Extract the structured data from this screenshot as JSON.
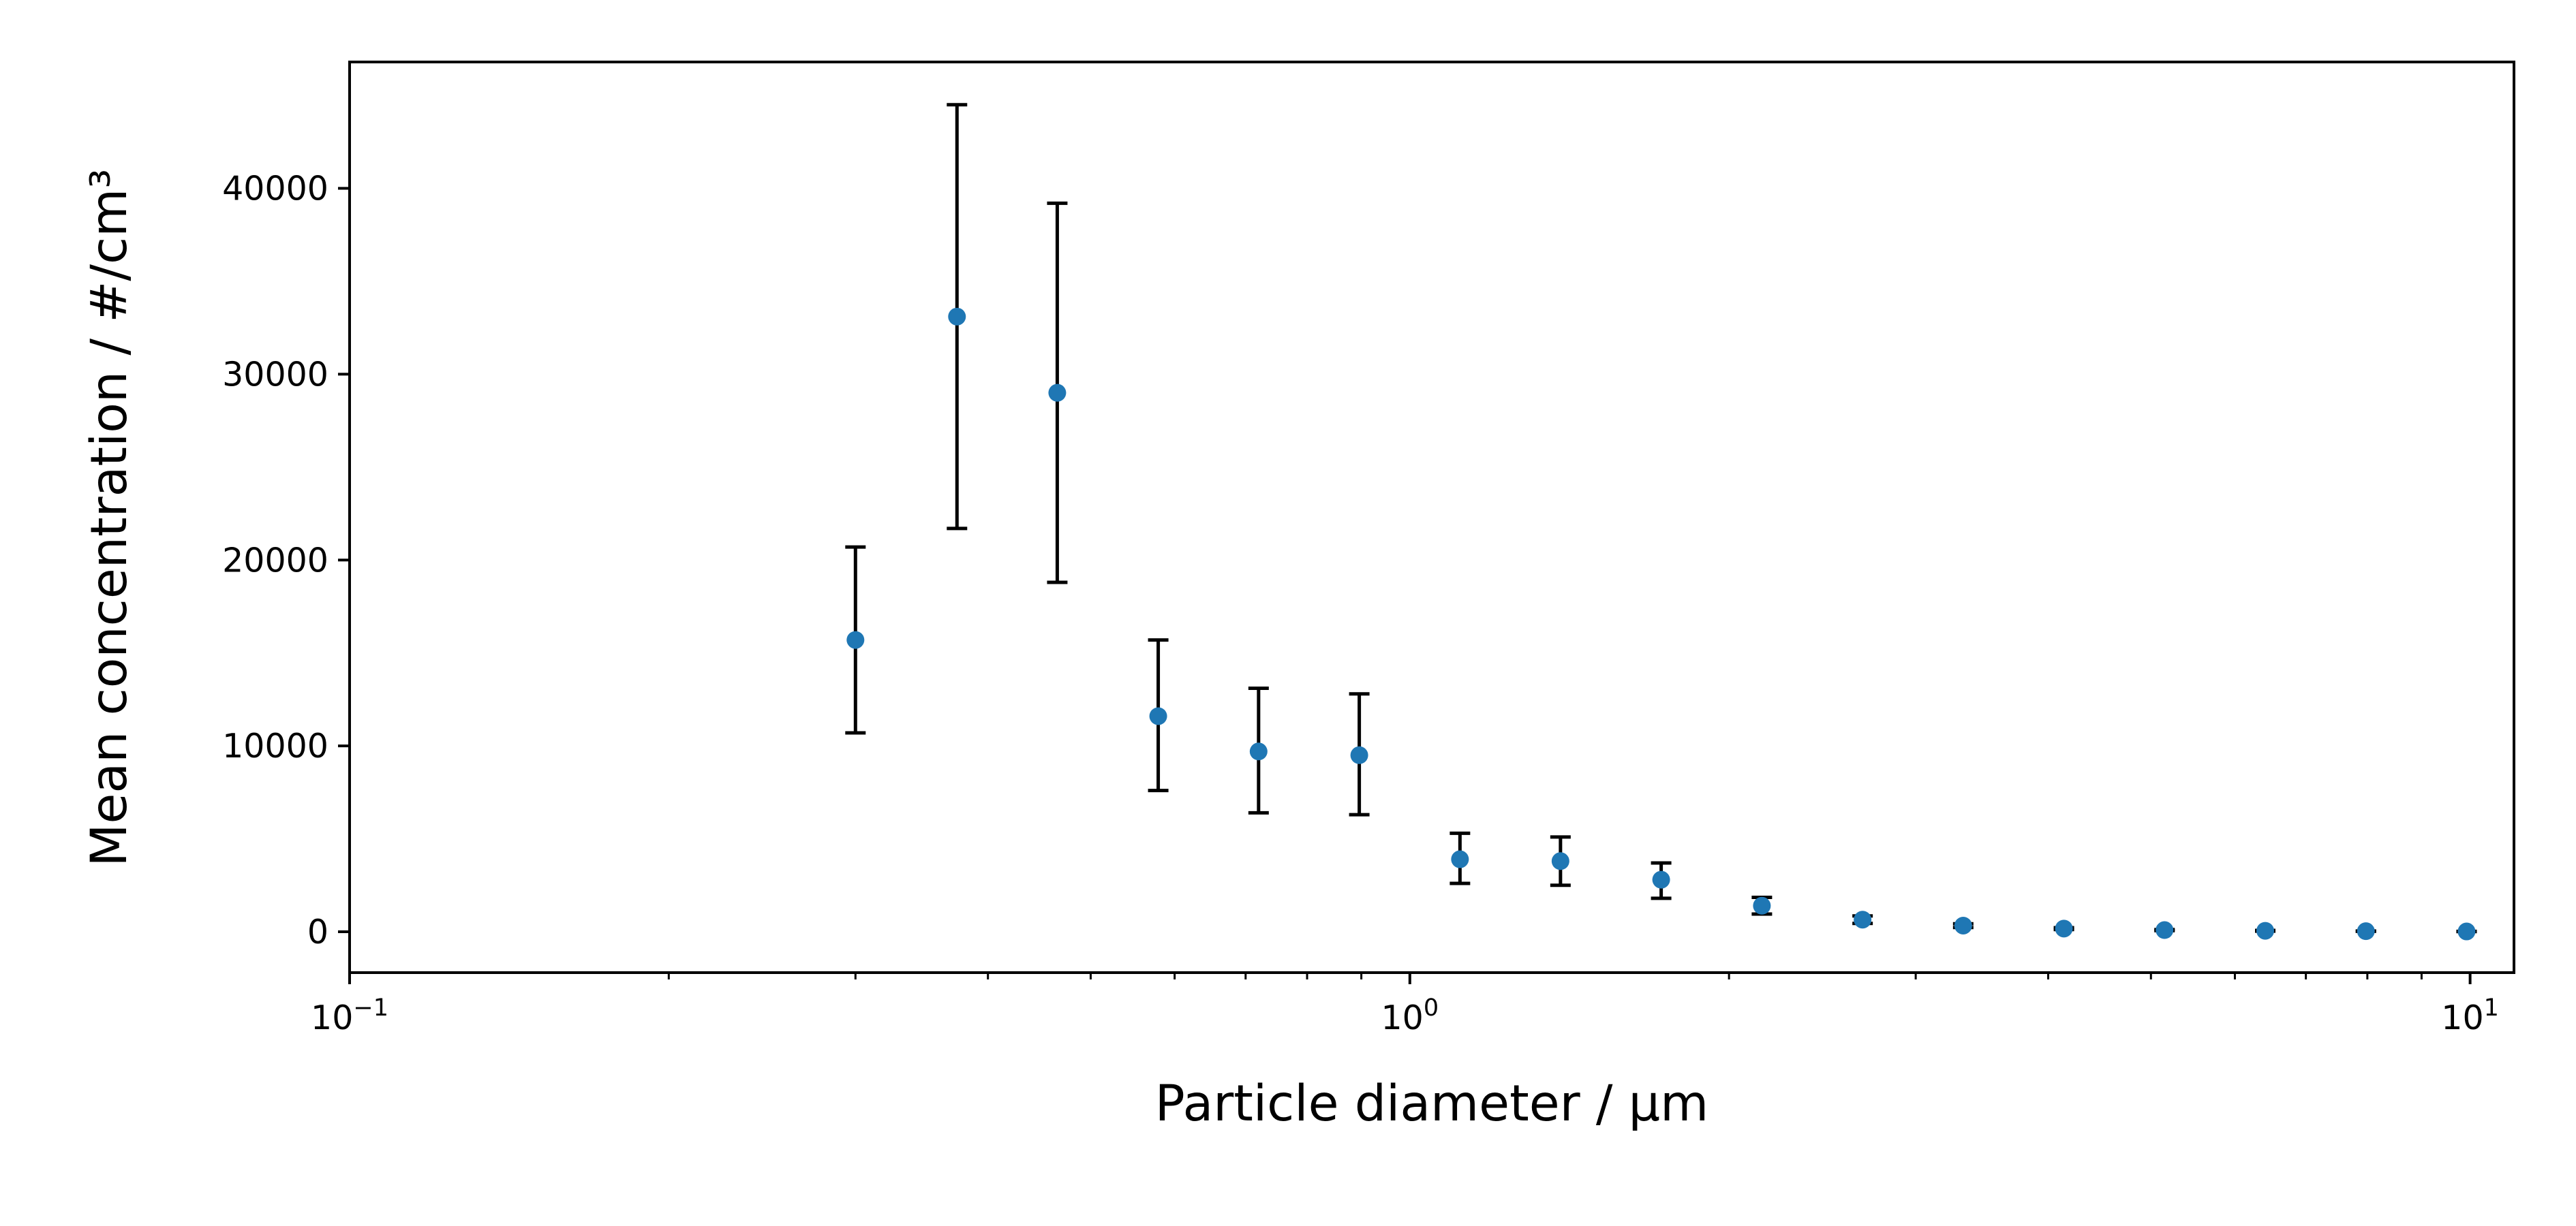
{
  "chart_data": {
    "type": "scatter",
    "title": "",
    "xlabel": "Particle diameter / μm",
    "ylabel": "Mean concentration / #/cm³",
    "xscale": "log",
    "xlim": [
      0.1,
      11.0
    ],
    "ylim": [
      -2200,
      46800
    ],
    "grid": false,
    "legend": "none",
    "marker_color": "#1f77b4",
    "errorbar_color": "#000000",
    "x_ticks": [
      {
        "value": 0.1,
        "base": "10",
        "exp": "−1"
      },
      {
        "value": 1,
        "base": "10",
        "exp": "0"
      },
      {
        "value": 10,
        "base": "10",
        "exp": "1"
      }
    ],
    "y_ticks": [
      {
        "value": 0,
        "label": "0"
      },
      {
        "value": 10000,
        "label": "10000"
      },
      {
        "value": 20000,
        "label": "20000"
      },
      {
        "value": 30000,
        "label": "30000"
      },
      {
        "value": 40000,
        "label": "40000"
      }
    ],
    "points": [
      {
        "x": 0.3,
        "y": 15700,
        "err_low": 10700,
        "err_high": 20700
      },
      {
        "x": 0.374,
        "y": 33100,
        "err_low": 21700,
        "err_high": 44500
      },
      {
        "x": 0.465,
        "y": 29000,
        "err_low": 18800,
        "err_high": 39200
      },
      {
        "x": 0.579,
        "y": 11600,
        "err_low": 7600,
        "err_high": 15700
      },
      {
        "x": 0.72,
        "y": 9700,
        "err_low": 6400,
        "err_high": 13100
      },
      {
        "x": 0.896,
        "y": 9500,
        "err_low": 6300,
        "err_high": 12800
      },
      {
        "x": 1.115,
        "y": 3900,
        "err_low": 2600,
        "err_high": 5300
      },
      {
        "x": 1.387,
        "y": 3800,
        "err_low": 2500,
        "err_high": 5100
      },
      {
        "x": 1.726,
        "y": 2800,
        "err_low": 1800,
        "err_high": 3700
      },
      {
        "x": 2.148,
        "y": 1400,
        "err_low": 950,
        "err_high": 1850
      },
      {
        "x": 2.673,
        "y": 650,
        "err_low": 450,
        "err_high": 850
      },
      {
        "x": 3.326,
        "y": 330,
        "err_low": 230,
        "err_high": 430
      },
      {
        "x": 4.139,
        "y": 170,
        "err_low": 120,
        "err_high": 220
      },
      {
        "x": 5.15,
        "y": 90,
        "err_low": 60,
        "err_high": 120
      },
      {
        "x": 6.409,
        "y": 50,
        "err_low": 30,
        "err_high": 70
      },
      {
        "x": 7.975,
        "y": 30,
        "err_low": 20,
        "err_high": 40
      },
      {
        "x": 9.924,
        "y": 15,
        "err_low": 10,
        "err_high": 20
      }
    ]
  }
}
